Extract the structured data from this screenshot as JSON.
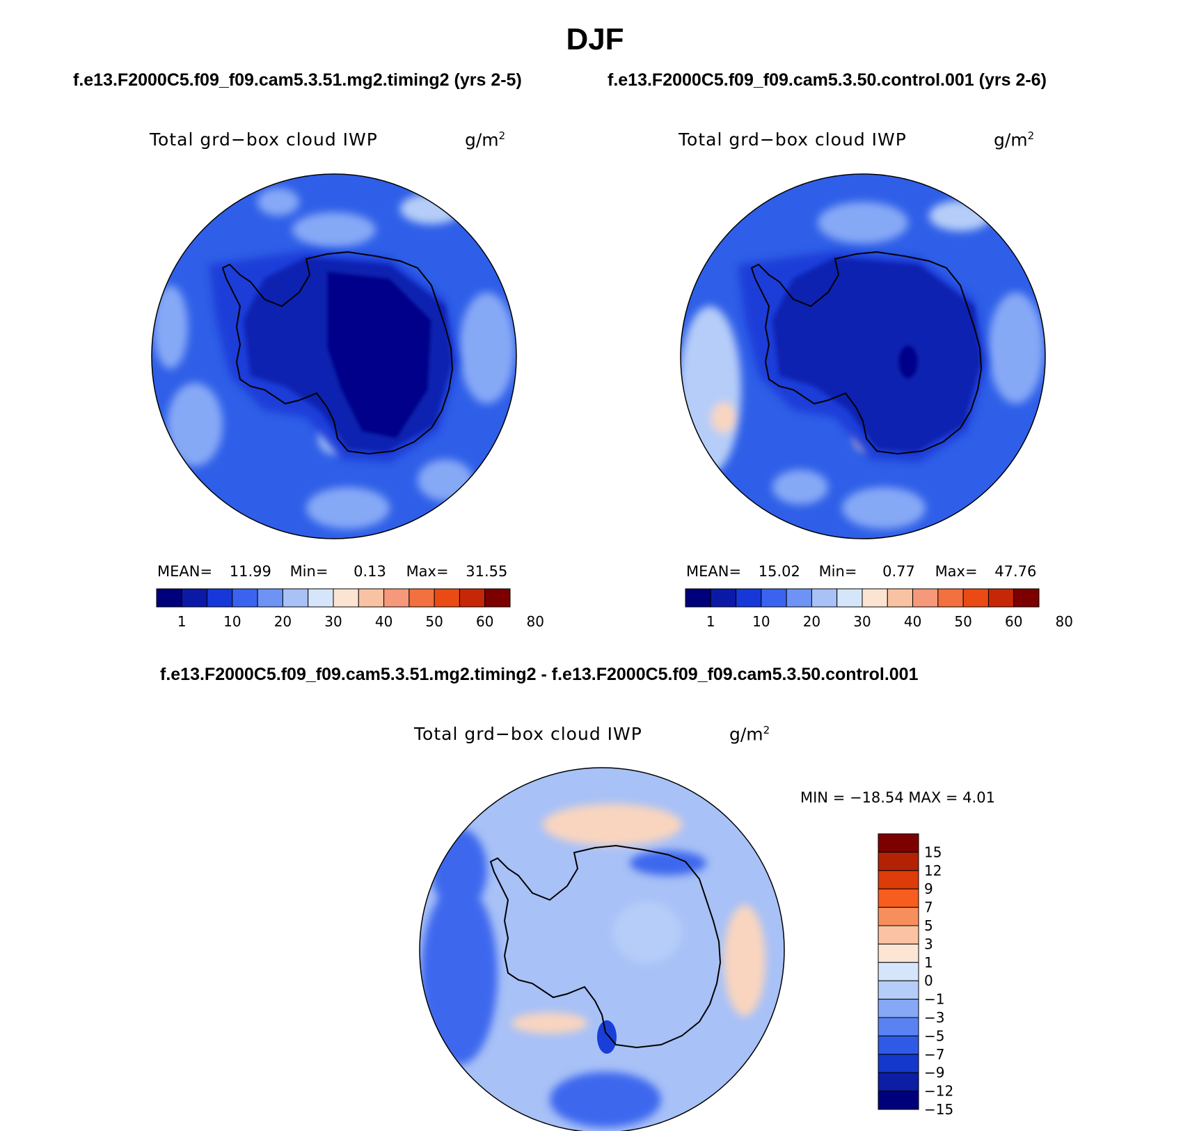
{
  "header": {
    "title": "DJF",
    "left_case": "f.e13.F2000C5.f09_f09.cam5.3.51.mg2.timing2 (yrs 2-5)",
    "right_case": "f.e13.F2000C5.f09_f09.cam5.3.50.control.001 (yrs 2-6)",
    "diff_title": "f.e13.F2000C5.f09_f09.cam5.3.51.mg2.timing2 - f.e13.F2000C5.f09_f09.cam5.3.50.control.001"
  },
  "panels": {
    "left": {
      "variable": "Total grd−box cloud IWP",
      "unit": "g/m",
      "unit_sup": "2",
      "mean_label": "MEAN=",
      "mean": "11.99",
      "min_label": "Min=",
      "min": "0.13",
      "max_label": "Max=",
      "max": "31.55"
    },
    "right": {
      "variable": "Total grd−box cloud IWP",
      "unit": "g/m",
      "unit_sup": "2",
      "mean_label": "MEAN=",
      "mean": "15.02",
      "min_label": "Min=",
      "min": "0.77",
      "max_label": "Max=",
      "max": "47.76"
    },
    "diff": {
      "variable": "Total grd−box cloud IWP",
      "unit": "g/m",
      "unit_sup": "2",
      "minmax": "MIN = −18.54 MAX =    4.01"
    }
  },
  "colorbars": {
    "abs": {
      "colors": [
        "#00007a",
        "#0b1aa6",
        "#1638d8",
        "#3a64f0",
        "#6d93f5",
        "#a8c1f7",
        "#d6e6fa",
        "#fbe4d2",
        "#f9c3a3",
        "#f6987a",
        "#f3703f",
        "#ea4b14",
        "#c62706",
        "#7d0000"
      ],
      "labels": [
        "1",
        "10",
        "20",
        "30",
        "40",
        "50",
        "60",
        "80"
      ]
    },
    "diff": {
      "colors": [
        "#7d0000",
        "#b42206",
        "#dd3c09",
        "#f65d1e",
        "#f78f5d",
        "#fbc3a3",
        "#fde5d3",
        "#d6e6fa",
        "#b5cdf8",
        "#86a9f6",
        "#5a82f2",
        "#2f5ae6",
        "#1538cc",
        "#0b1ea4",
        "#00007a"
      ],
      "labels": [
        "15",
        "12",
        "9",
        "7",
        "5",
        "3",
        "1",
        "0",
        "−1",
        "−3",
        "−5",
        "−7",
        "−9",
        "−12",
        "−15"
      ]
    }
  },
  "map_colors": {
    "ocean_base": "#2f5fe8",
    "ocean_light": "#86a9f6",
    "ocean_pale": "#b5cdf8",
    "ice_ring": "#1a3ed8",
    "ice_mid": "#0e22b0",
    "ice_deep": "#04048a",
    "diff_base": "#a8c1f7",
    "diff_dark": "#3d68ee",
    "diff_deep": "#1a3ed8",
    "diff_pos": "#f9d5bf",
    "coast": "#000000"
  }
}
